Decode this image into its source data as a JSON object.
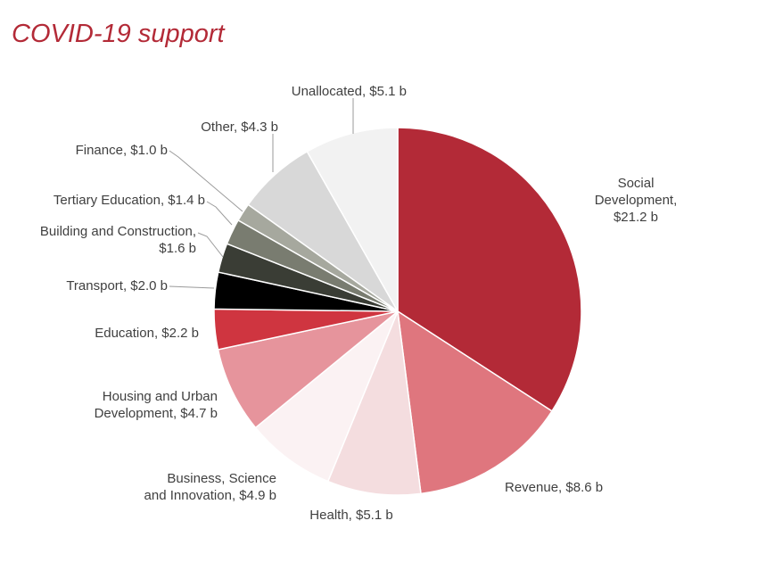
{
  "chart_data": {
    "type": "pie",
    "title": "COVID-19 support",
    "unit": "$ b",
    "start": "12 o'clock",
    "direction": "clockwise",
    "slices": [
      {
        "label_lines": [
          "Social",
          "Development,",
          "$21.2 b"
        ],
        "name": "Social Development",
        "value": 21.2,
        "color": "#b32a37"
      },
      {
        "label_lines": [
          "Revenue, $8.6 b"
        ],
        "name": "Revenue",
        "value": 8.6,
        "color": "#df767e"
      },
      {
        "label_lines": [
          "Health, $5.1 b"
        ],
        "name": "Health",
        "value": 5.1,
        "color": "#f4dddf"
      },
      {
        "label_lines": [
          "Business, Science",
          "and Innovation, $4.9 b"
        ],
        "name": "Business, Science and Innovation",
        "value": 4.9,
        "color": "#fbf2f3"
      },
      {
        "label_lines": [
          "Housing and Urban",
          "Development, $4.7 b"
        ],
        "name": "Housing and Urban Development",
        "value": 4.7,
        "color": "#e6949c"
      },
      {
        "label_lines": [
          "Education, $2.2 b"
        ],
        "name": "Education",
        "value": 2.2,
        "color": "#cf3540"
      },
      {
        "label_lines": [
          "Transport, $2.0 b"
        ],
        "name": "Transport",
        "value": 2.0,
        "color": "#000000"
      },
      {
        "label_lines": [
          "Building and Construction,",
          "$1.6 b"
        ],
        "name": "Building and Construction",
        "value": 1.6,
        "color": "#3a3d35"
      },
      {
        "label_lines": [
          "Tertiary Education, $1.4 b"
        ],
        "name": "Tertiary Education",
        "value": 1.4,
        "color": "#797c70"
      },
      {
        "label_lines": [
          "Finance, $1.0 b"
        ],
        "name": "Finance",
        "value": 1.0,
        "color": "#a6a89e"
      },
      {
        "label_lines": [
          "Other, $4.3 b"
        ],
        "name": "Other",
        "value": 4.3,
        "color": "#d8d8d8"
      },
      {
        "label_lines": [
          "Unallocated, $5.1 b"
        ],
        "name": "Unallocated",
        "value": 5.1,
        "color": "#f2f2f2"
      }
    ]
  }
}
